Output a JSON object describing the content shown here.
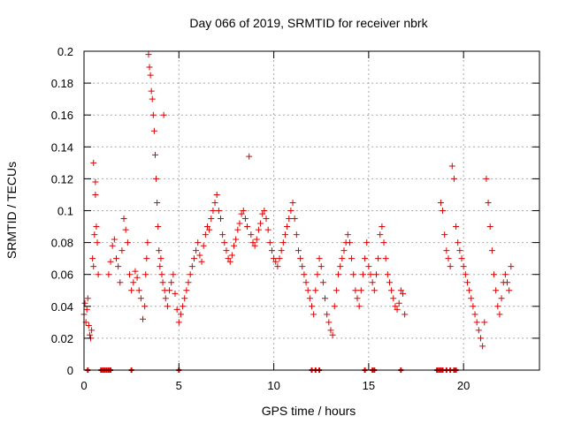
{
  "chart_data": {
    "type": "scatter",
    "title": "Day 066 of 2019, SRMTID for receiver nbrk",
    "xlabel": "GPS time / hours",
    "ylabel": "SRMTID / TECUs",
    "xlim": [
      0,
      24
    ],
    "ylim": [
      0,
      0.2
    ],
    "grid": true,
    "x_ticks": [
      0,
      5,
      10,
      15,
      20
    ],
    "x_tick_labels": [
      "0",
      "5",
      "10",
      "15",
      "20"
    ],
    "y_ticks": [
      0,
      0.02,
      0.04,
      0.06,
      0.08,
      0.1,
      0.12,
      0.14,
      0.16,
      0.18,
      0.2
    ],
    "y_tick_labels": [
      "0",
      "0.02",
      "0.04",
      "0.06",
      "0.08",
      "0.1",
      "0.12",
      "0.14",
      "0.16",
      "0.18",
      "0.2"
    ],
    "marker": "plus",
    "color": "#e00000",
    "series": [
      {
        "name": "SRMTID",
        "points": [
          [
            0.0,
            0.035
          ],
          [
            0.05,
            0.042
          ],
          [
            0.1,
            0.03
          ],
          [
            0.15,
            0.038
          ],
          [
            0.2,
            0.045
          ],
          [
            0.25,
            0.028
          ],
          [
            0.3,
            0.022
          ],
          [
            0.35,
            0.02
          ],
          [
            0.4,
            0.025
          ],
          [
            0.45,
            0.07
          ],
          [
            0.5,
            0.065
          ],
          [
            0.5,
            0.13
          ],
          [
            0.55,
            0.085
          ],
          [
            0.6,
            0.11
          ],
          [
            0.6,
            0.118
          ],
          [
            0.65,
            0.09
          ],
          [
            0.7,
            0.08
          ],
          [
            0.75,
            0.06
          ],
          [
            1.3,
            0.06
          ],
          [
            1.4,
            0.068
          ],
          [
            1.5,
            0.078
          ],
          [
            1.6,
            0.082
          ],
          [
            1.7,
            0.07
          ],
          [
            1.8,
            0.065
          ],
          [
            1.9,
            0.055
          ],
          [
            2.0,
            0.075
          ],
          [
            2.1,
            0.095
          ],
          [
            2.2,
            0.088
          ],
          [
            2.3,
            0.08
          ],
          [
            2.4,
            0.06
          ],
          [
            2.5,
            0.05
          ],
          [
            2.6,
            0.055
          ],
          [
            2.7,
            0.062
          ],
          [
            2.8,
            0.058
          ],
          [
            2.9,
            0.05
          ],
          [
            3.0,
            0.045
          ],
          [
            3.1,
            0.032
          ],
          [
            3.2,
            0.04
          ],
          [
            3.25,
            0.06
          ],
          [
            3.3,
            0.07
          ],
          [
            3.35,
            0.08
          ],
          [
            3.4,
            0.198
          ],
          [
            3.45,
            0.19
          ],
          [
            3.5,
            0.185
          ],
          [
            3.55,
            0.175
          ],
          [
            3.6,
            0.17
          ],
          [
            3.65,
            0.16
          ],
          [
            3.7,
            0.15
          ],
          [
            3.75,
            0.135
          ],
          [
            3.8,
            0.12
          ],
          [
            3.85,
            0.105
          ],
          [
            3.9,
            0.09
          ],
          [
            3.95,
            0.075
          ],
          [
            4.0,
            0.065
          ],
          [
            4.05,
            0.07
          ],
          [
            4.1,
            0.06
          ],
          [
            4.15,
            0.055
          ],
          [
            4.2,
            0.16
          ],
          [
            4.25,
            0.05
          ],
          [
            4.3,
            0.045
          ],
          [
            4.4,
            0.04
          ],
          [
            4.5,
            0.05
          ],
          [
            4.6,
            0.055
          ],
          [
            4.7,
            0.06
          ],
          [
            4.8,
            0.048
          ],
          [
            4.9,
            0.038
          ],
          [
            5.0,
            0.03
          ],
          [
            5.1,
            0.035
          ],
          [
            5.2,
            0.04
          ],
          [
            5.3,
            0.045
          ],
          [
            5.4,
            0.05
          ],
          [
            5.5,
            0.055
          ],
          [
            5.6,
            0.06
          ],
          [
            5.7,
            0.065
          ],
          [
            5.8,
            0.07
          ],
          [
            5.9,
            0.075
          ],
          [
            6.0,
            0.08
          ],
          [
            6.1,
            0.072
          ],
          [
            6.2,
            0.068
          ],
          [
            6.3,
            0.078
          ],
          [
            6.4,
            0.085
          ],
          [
            6.5,
            0.09
          ],
          [
            6.6,
            0.088
          ],
          [
            6.7,
            0.095
          ],
          [
            6.8,
            0.1
          ],
          [
            6.9,
            0.105
          ],
          [
            7.0,
            0.11
          ],
          [
            7.1,
            0.1
          ],
          [
            7.2,
            0.095
          ],
          [
            7.3,
            0.085
          ],
          [
            7.4,
            0.08
          ],
          [
            7.5,
            0.075
          ],
          [
            7.6,
            0.07
          ],
          [
            7.7,
            0.068
          ],
          [
            7.8,
            0.072
          ],
          [
            7.9,
            0.078
          ],
          [
            8.0,
            0.082
          ],
          [
            8.1,
            0.088
          ],
          [
            8.2,
            0.092
          ],
          [
            8.3,
            0.098
          ],
          [
            8.4,
            0.1
          ],
          [
            8.5,
            0.095
          ],
          [
            8.6,
            0.09
          ],
          [
            8.7,
            0.134
          ],
          [
            8.8,
            0.085
          ],
          [
            8.9,
            0.08
          ],
          [
            9.0,
            0.078
          ],
          [
            9.1,
            0.082
          ],
          [
            9.2,
            0.088
          ],
          [
            9.3,
            0.092
          ],
          [
            9.4,
            0.098
          ],
          [
            9.5,
            0.1
          ],
          [
            9.6,
            0.095
          ],
          [
            9.7,
            0.088
          ],
          [
            9.8,
            0.08
          ],
          [
            9.9,
            0.075
          ],
          [
            10.0,
            0.07
          ],
          [
            10.1,
            0.068
          ],
          [
            10.2,
            0.065
          ],
          [
            10.3,
            0.07
          ],
          [
            10.4,
            0.075
          ],
          [
            10.5,
            0.08
          ],
          [
            10.6,
            0.085
          ],
          [
            10.7,
            0.09
          ],
          [
            10.8,
            0.095
          ],
          [
            10.9,
            0.1
          ],
          [
            11.0,
            0.105
          ],
          [
            11.1,
            0.095
          ],
          [
            11.2,
            0.085
          ],
          [
            11.3,
            0.075
          ],
          [
            11.4,
            0.07
          ],
          [
            11.5,
            0.065
          ],
          [
            11.6,
            0.06
          ],
          [
            11.7,
            0.055
          ],
          [
            11.8,
            0.05
          ],
          [
            11.9,
            0.045
          ],
          [
            12.0,
            0.04
          ],
          [
            12.1,
            0.035
          ],
          [
            12.2,
            0.05
          ],
          [
            12.3,
            0.06
          ],
          [
            12.4,
            0.07
          ],
          [
            12.5,
            0.065
          ],
          [
            12.6,
            0.055
          ],
          [
            12.7,
            0.045
          ],
          [
            12.8,
            0.035
          ],
          [
            12.9,
            0.03
          ],
          [
            13.0,
            0.025
          ],
          [
            13.1,
            0.022
          ],
          [
            13.2,
            0.04
          ],
          [
            13.3,
            0.05
          ],
          [
            13.4,
            0.06
          ],
          [
            13.5,
            0.065
          ],
          [
            13.6,
            0.07
          ],
          [
            13.7,
            0.075
          ],
          [
            13.8,
            0.08
          ],
          [
            13.9,
            0.085
          ],
          [
            14.0,
            0.08
          ],
          [
            14.1,
            0.07
          ],
          [
            14.2,
            0.06
          ],
          [
            14.3,
            0.05
          ],
          [
            14.4,
            0.045
          ],
          [
            14.5,
            0.04
          ],
          [
            14.6,
            0.05
          ],
          [
            14.7,
            0.06
          ],
          [
            14.8,
            0.07
          ],
          [
            14.9,
            0.08
          ],
          [
            15.0,
            0.065
          ],
          [
            15.1,
            0.06
          ],
          [
            15.2,
            0.055
          ],
          [
            15.3,
            0.05
          ],
          [
            15.4,
            0.06
          ],
          [
            15.5,
            0.07
          ],
          [
            15.6,
            0.085
          ],
          [
            15.7,
            0.09
          ],
          [
            15.8,
            0.08
          ],
          [
            15.9,
            0.07
          ],
          [
            16.0,
            0.06
          ],
          [
            16.1,
            0.055
          ],
          [
            16.2,
            0.05
          ],
          [
            16.3,
            0.045
          ],
          [
            16.4,
            0.04
          ],
          [
            16.5,
            0.038
          ],
          [
            16.6,
            0.042
          ],
          [
            16.7,
            0.05
          ],
          [
            16.8,
            0.048
          ],
          [
            16.9,
            0.035
          ],
          [
            18.8,
            0.105
          ],
          [
            18.9,
            0.1
          ],
          [
            19.0,
            0.085
          ],
          [
            19.1,
            0.075
          ],
          [
            19.2,
            0.07
          ],
          [
            19.3,
            0.065
          ],
          [
            19.4,
            0.128
          ],
          [
            19.5,
            0.12
          ],
          [
            19.6,
            0.09
          ],
          [
            19.7,
            0.08
          ],
          [
            19.8,
            0.075
          ],
          [
            19.9,
            0.07
          ],
          [
            20.0,
            0.065
          ],
          [
            20.1,
            0.06
          ],
          [
            20.2,
            0.055
          ],
          [
            20.3,
            0.05
          ],
          [
            20.4,
            0.045
          ],
          [
            20.5,
            0.04
          ],
          [
            20.6,
            0.035
          ],
          [
            20.7,
            0.03
          ],
          [
            20.8,
            0.025
          ],
          [
            20.9,
            0.02
          ],
          [
            21.0,
            0.015
          ],
          [
            21.1,
            0.03
          ],
          [
            21.2,
            0.12
          ],
          [
            21.3,
            0.105
          ],
          [
            21.4,
            0.09
          ],
          [
            21.5,
            0.075
          ],
          [
            21.6,
            0.06
          ],
          [
            21.7,
            0.05
          ],
          [
            21.8,
            0.04
          ],
          [
            21.9,
            0.035
          ],
          [
            22.0,
            0.045
          ],
          [
            22.1,
            0.055
          ],
          [
            22.2,
            0.06
          ],
          [
            22.3,
            0.055
          ],
          [
            22.4,
            0.05
          ],
          [
            22.5,
            0.065
          ]
        ]
      }
    ],
    "zero_markers_x": [
      0.2,
      0.9,
      1.0,
      1.1,
      1.2,
      1.3,
      1.4,
      2.5,
      5.0,
      12.0,
      12.2,
      12.4,
      14.8,
      15.2,
      15.3,
      16.7,
      18.6,
      18.7,
      18.8,
      18.9,
      19.1,
      19.3,
      19.5,
      19.6
    ]
  }
}
